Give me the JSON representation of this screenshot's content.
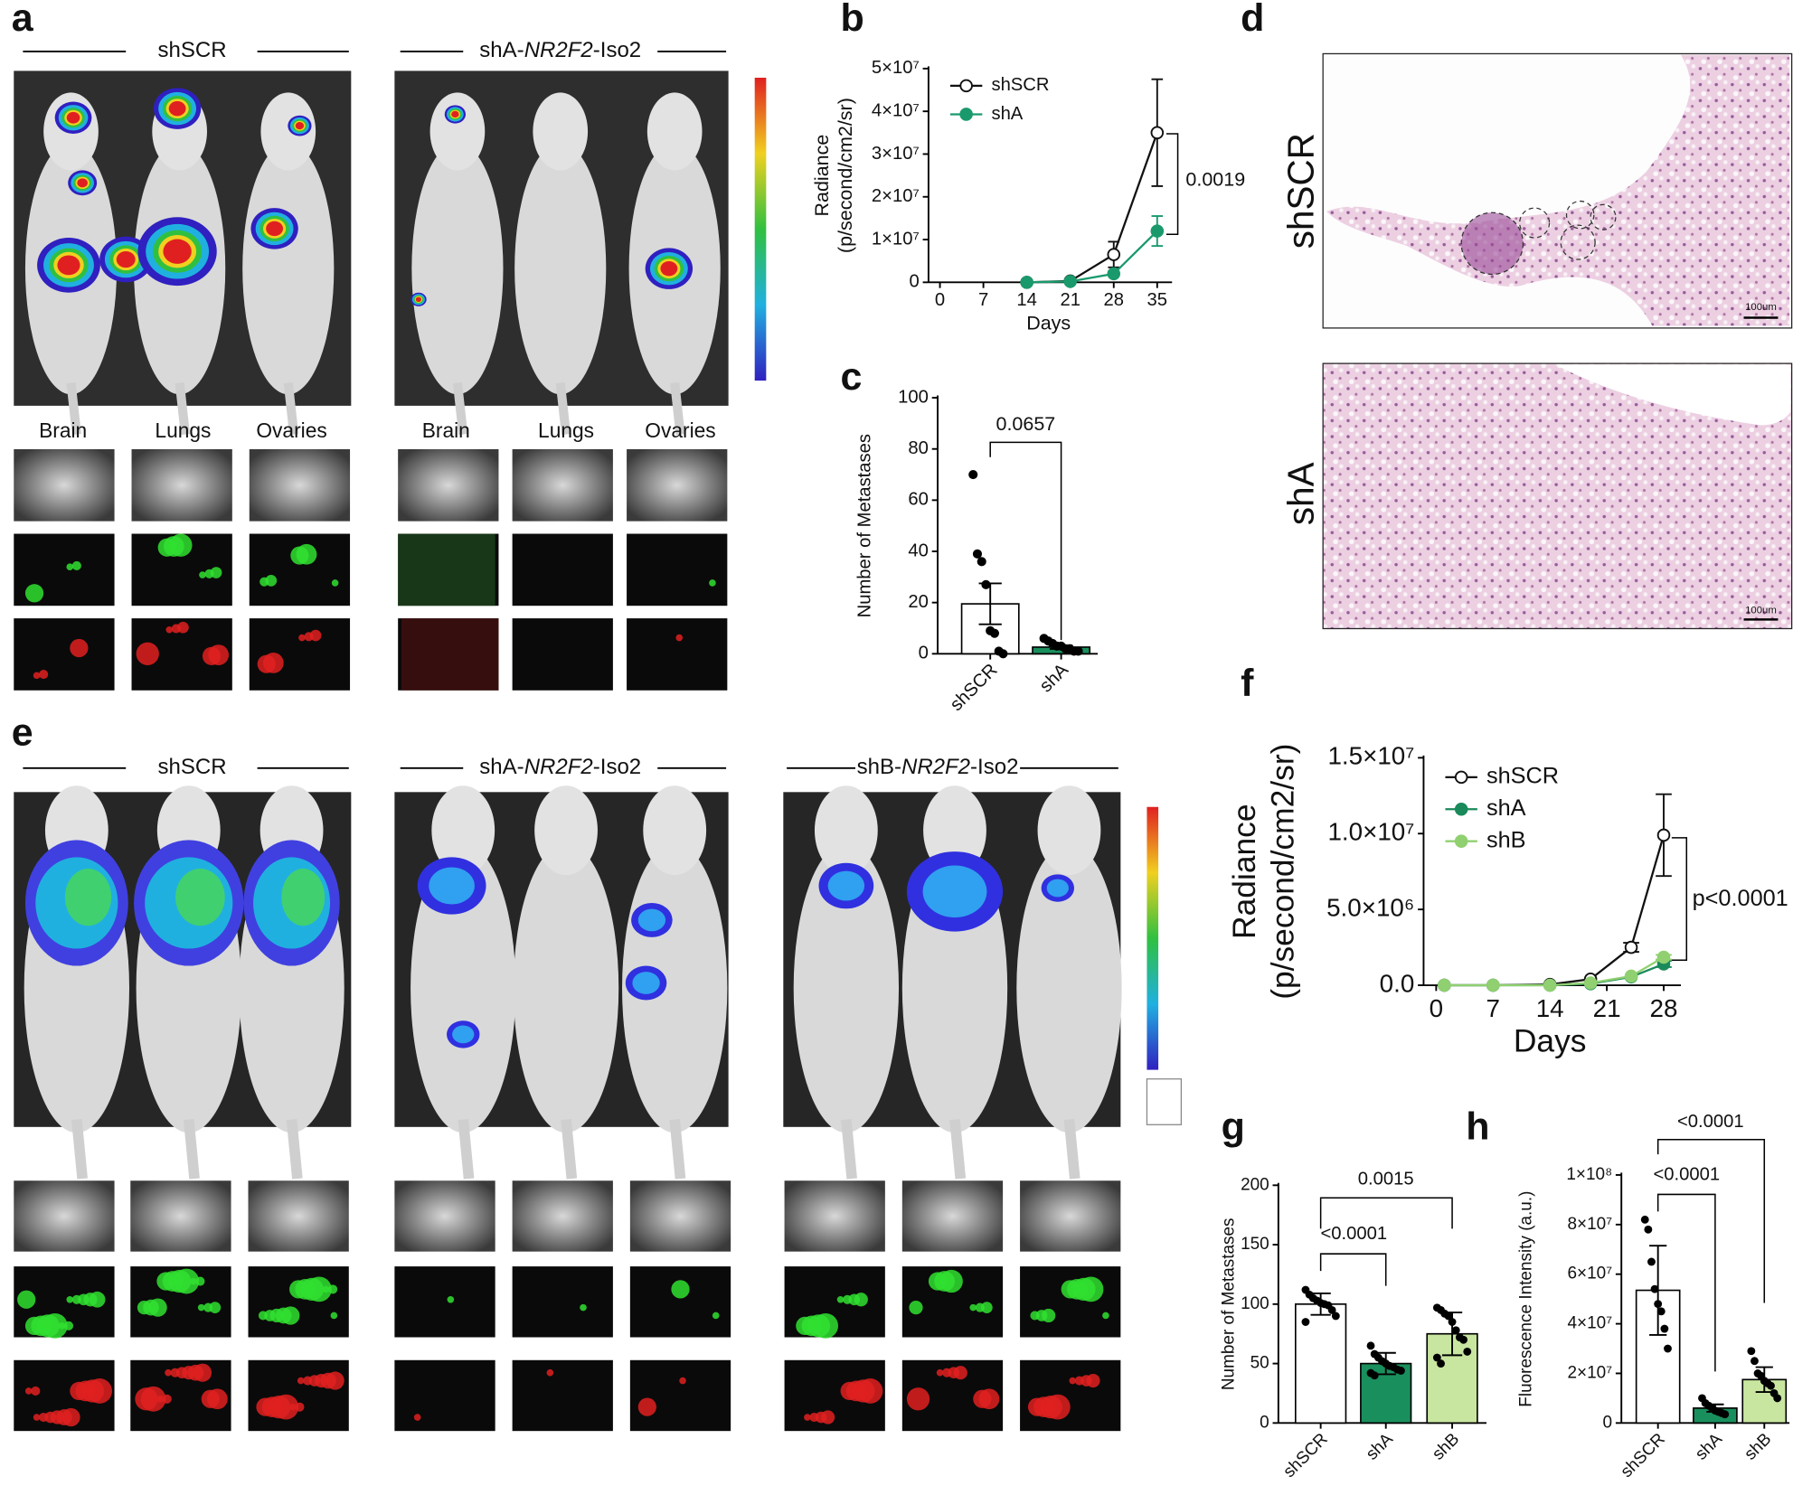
{
  "panel_labels": [
    "a",
    "b",
    "c",
    "d",
    "e",
    "f",
    "g",
    "h"
  ],
  "panel_a": {
    "groups": [
      [
        "shSCR"
      ],
      [
        "shA-",
        "NR2F2",
        "-Iso2"
      ]
    ],
    "organs": [
      "Brain",
      "Lungs",
      "Ovaries"
    ]
  },
  "panel_d": {
    "rows": [
      "shSCR",
      "shA"
    ],
    "scale_bar": "100um"
  },
  "panel_e": {
    "groups": [
      [
        "shSCR"
      ],
      [
        "shA-",
        "NR2F2",
        "-Iso2"
      ],
      [
        "shB-",
        "NR2F2",
        "-Iso2"
      ]
    ]
  },
  "chart_data": [
    {
      "type": "line",
      "y_label": [
        "Radiance",
        "(p/second/cm2/sr)"
      ],
      "x_label": "Days",
      "x": [
        14,
        21,
        28,
        35
      ],
      "xlim": [
        0,
        35
      ],
      "xticks": [
        0,
        7,
        14,
        21,
        28,
        35
      ],
      "ylim": [
        0,
        50000000
      ],
      "yticks": [
        0,
        {
          "value": 10000000,
          "label": "1×10⁷"
        },
        {
          "value": 20000000,
          "label": "2×10⁷"
        },
        {
          "value": 30000000,
          "label": "3×10⁷"
        },
        {
          "value": 40000000,
          "label": "4×10⁷"
        },
        {
          "value": 50000000,
          "label": "5×10⁷"
        }
      ],
      "series": [
        {
          "name": "shSCR",
          "color": "#111111",
          "hollow": true,
          "values": [
            0,
            300000,
            6500000,
            35000000
          ],
          "errors": [
            null,
            null,
            3000000,
            12500000
          ]
        },
        {
          "name": "shA",
          "color": "#1a9a6c",
          "hollow": false,
          "values": [
            0,
            200000,
            2000000,
            12000000
          ],
          "errors": [
            null,
            null,
            null,
            3500000
          ]
        }
      ],
      "annotations": [
        "0.0019"
      ]
    },
    {
      "type": "bar",
      "y_label": "Number of Metastases",
      "categories": [
        "shSCR",
        "shA"
      ],
      "values": [
        19.5,
        2.6
      ],
      "errors": [
        8,
        0.7
      ],
      "colors": [
        "#ffffff",
        "#1a8f5e"
      ],
      "points": [
        [
          70,
          39,
          36,
          27,
          9,
          8,
          1,
          0
        ],
        [
          6,
          5,
          4,
          3,
          3,
          2,
          2,
          1,
          1
        ]
      ],
      "ylim": [
        0,
        100
      ],
      "yticks": [
        0,
        20,
        40,
        60,
        80,
        100
      ],
      "annotations": [
        "0.0657"
      ]
    },
    {
      "type": "line",
      "y_label": [
        "Radiance",
        "(p/second/cm2/sr)"
      ],
      "x_label": "Days",
      "x": [
        1,
        7,
        14,
        19,
        24,
        28
      ],
      "xlim": [
        0,
        28
      ],
      "xticks": [
        0,
        7,
        14,
        21,
        28
      ],
      "ylim": [
        0,
        15000000
      ],
      "yticks": [
        {
          "value": 0,
          "label": "0.0"
        },
        {
          "value": 5000000,
          "label": "5.0×10⁶"
        },
        {
          "value": 10000000,
          "label": "1.0×10⁷"
        },
        {
          "value": 15000000,
          "label": "1.5×10⁷"
        }
      ],
      "series": [
        {
          "name": "shSCR",
          "color": "#111111",
          "hollow": true,
          "values": [
            0,
            0,
            50000,
            400000,
            2500000,
            9900000
          ],
          "errors": [
            null,
            null,
            null,
            null,
            300000,
            2700000
          ]
        },
        {
          "name": "shA",
          "color": "#1a8a5a",
          "hollow": false,
          "values": [
            0,
            0,
            0,
            100000,
            550000,
            1400000
          ],
          "errors": [
            null,
            null,
            null,
            null,
            null,
            200000
          ]
        },
        {
          "name": "shB",
          "color": "#90d070",
          "hollow": false,
          "values": [
            0,
            0,
            0,
            150000,
            600000,
            1850000
          ],
          "errors": [
            null,
            null,
            null,
            null,
            null,
            150000
          ]
        }
      ],
      "annotations": [
        "p<0.0001"
      ]
    },
    {
      "type": "bar",
      "y_label": "Number of Metastases",
      "categories": [
        "shSCR",
        "shA",
        "shB"
      ],
      "values": [
        100,
        50,
        75
      ],
      "errors": [
        9,
        9,
        18
      ],
      "colors": [
        "#ffffff",
        "#1a8f5e",
        "#c8e6a0"
      ],
      "points": [
        [
          112,
          108,
          105,
          103,
          101,
          100,
          99,
          95,
          90,
          85
        ],
        [
          65,
          58,
          55,
          52,
          50,
          48,
          47,
          45,
          44,
          42,
          40
        ],
        [
          97,
          95,
          92,
          90,
          85,
          78,
          72,
          70,
          60,
          55,
          50
        ]
      ],
      "ylim": [
        0,
        200
      ],
      "yticks": [
        0,
        50,
        100,
        150,
        200
      ],
      "annotations": [
        "<0.0001",
        "0.0015"
      ]
    },
    {
      "type": "bar",
      "y_label": "Fluorescence Intensity (a.u.)",
      "categories": [
        "shSCR",
        "shA",
        "shB"
      ],
      "values": [
        53500000,
        6000000,
        17500000
      ],
      "errors": [
        18000000,
        1500000,
        5000000
      ],
      "colors": [
        "#ffffff",
        "#1a8f5e",
        "#c8e6a0"
      ],
      "points": [
        [
          82000000,
          78000000,
          65000000,
          54000000,
          48000000,
          45000000,
          38000000,
          30000000
        ],
        [
          10000000,
          8000000,
          7000000,
          6000000,
          5000000,
          4500000,
          4000000,
          3500000
        ],
        [
          29000000,
          25000000,
          20000000,
          19000000,
          17000000,
          16000000,
          15000000,
          12000000,
          10000000
        ]
      ],
      "ylim": [
        0,
        100000000
      ],
      "yticks": [
        0,
        {
          "value": 20000000,
          "label": "2×10⁷"
        },
        {
          "value": 40000000,
          "label": "4×10⁷"
        },
        {
          "value": 60000000,
          "label": "6×10⁷"
        },
        {
          "value": 80000000,
          "label": "8×10⁷"
        },
        {
          "value": 100000000,
          "label": "1×10⁸"
        }
      ],
      "annotations": [
        "<0.0001",
        "<0.0001"
      ]
    }
  ]
}
